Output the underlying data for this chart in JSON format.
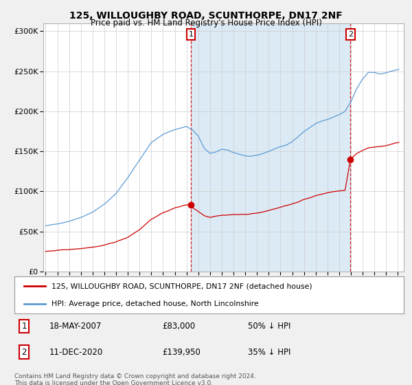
{
  "title": "125, WILLOUGHBY ROAD, SCUNTHORPE, DN17 2NF",
  "subtitle": "Price paid vs. HM Land Registry's House Price Index (HPI)",
  "legend_line1": "125, WILLOUGHBY ROAD, SCUNTHORPE, DN17 2NF (detached house)",
  "legend_line2": "HPI: Average price, detached house, North Lincolnshire",
  "transaction1_date": "18-MAY-2007",
  "transaction1_price": "£83,000",
  "transaction1_hpi": "50% ↓ HPI",
  "transaction2_date": "11-DEC-2020",
  "transaction2_price": "£139,950",
  "transaction2_hpi": "35% ↓ HPI",
  "footer1": "Contains HM Land Registry data © Crown copyright and database right 2024.",
  "footer2": "This data is licensed under the Open Government Licence v3.0.",
  "hpi_color": "#5b9bd5",
  "price_color": "#cc0000",
  "marker_color": "#cc0000",
  "dashed_color": "#cc0000",
  "shade_color": "#dceaf5",
  "bg_color": "#f0f0f0",
  "plot_bg": "#ffffff",
  "transaction1_x": 2007.38,
  "transaction2_x": 2020.95,
  "transaction1_y": 83000,
  "transaction2_y": 139950,
  "ylim": [
    0,
    310000
  ],
  "xlim": [
    1994.8,
    2025.5
  ]
}
